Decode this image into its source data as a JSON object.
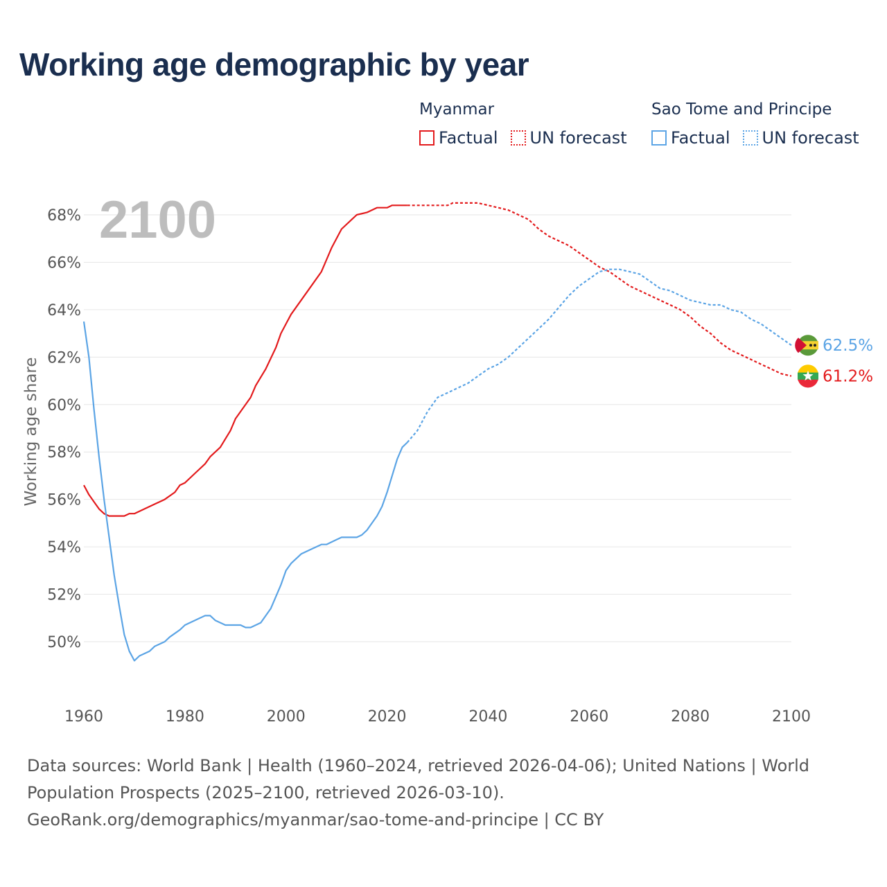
{
  "title": "Working age demographic by year",
  "legend": {
    "groups": [
      {
        "country": "Myanmar",
        "color": "#e31a1c",
        "factual_label": "Factual",
        "forecast_label": "UN forecast"
      },
      {
        "country": "Sao Tome and Principe",
        "color": "#5ba4e5",
        "factual_label": "Factual",
        "forecast_label": "UN forecast"
      }
    ]
  },
  "year_label": "2100",
  "footer": {
    "line1": "Data sources: World Bank | Health (1960–2024, retrieved 2026-04-06); United Nations | World",
    "line2": "Population Prospects (2025–2100, retrieved 2026-03-10).",
    "line3": "GeoRank.org/demographics/myanmar/sao-tome-and-principe | CC BY"
  },
  "chart_data": {
    "type": "line",
    "title": "Working age demographic by year",
    "xlabel": "",
    "ylabel": "Working age share",
    "xlim": [
      1960,
      2100
    ],
    "ylim": [
      48,
      69
    ],
    "x_ticks": [
      1960,
      1980,
      2000,
      2020,
      2040,
      2060,
      2080,
      2100
    ],
    "x_tick_labels": [
      "1960",
      "1980",
      "2000",
      "2020",
      "2040",
      "2060",
      "2080",
      "2100"
    ],
    "y_ticks": [
      50,
      52,
      54,
      56,
      58,
      60,
      62,
      64,
      66,
      68
    ],
    "y_tick_labels": [
      "50%",
      "52%",
      "54%",
      "56%",
      "58%",
      "60%",
      "62%",
      "64%",
      "66%",
      "68%"
    ],
    "grid": true,
    "series": [
      {
        "name": "Myanmar",
        "color": "#e31a1c",
        "end_label": "61.2%",
        "factual": [
          [
            1960,
            56.6
          ],
          [
            1961,
            56.2
          ],
          [
            1962,
            55.9
          ],
          [
            1963,
            55.6
          ],
          [
            1964,
            55.4
          ],
          [
            1965,
            55.3
          ],
          [
            1966,
            55.3
          ],
          [
            1967,
            55.3
          ],
          [
            1968,
            55.3
          ],
          [
            1969,
            55.4
          ],
          [
            1970,
            55.4
          ],
          [
            1972,
            55.6
          ],
          [
            1974,
            55.8
          ],
          [
            1976,
            56.0
          ],
          [
            1978,
            56.3
          ],
          [
            1979,
            56.6
          ],
          [
            1980,
            56.7
          ],
          [
            1982,
            57.1
          ],
          [
            1984,
            57.5
          ],
          [
            1985,
            57.8
          ],
          [
            1987,
            58.2
          ],
          [
            1989,
            58.9
          ],
          [
            1990,
            59.4
          ],
          [
            1991,
            59.7
          ],
          [
            1993,
            60.3
          ],
          [
            1994,
            60.8
          ],
          [
            1996,
            61.5
          ],
          [
            1998,
            62.4
          ],
          [
            1999,
            63.0
          ],
          [
            2000,
            63.4
          ],
          [
            2001,
            63.8
          ],
          [
            2003,
            64.4
          ],
          [
            2005,
            65.0
          ],
          [
            2007,
            65.6
          ],
          [
            2008,
            66.1
          ],
          [
            2009,
            66.6
          ],
          [
            2010,
            67.0
          ],
          [
            2011,
            67.4
          ],
          [
            2013,
            67.8
          ],
          [
            2014,
            68.0
          ],
          [
            2016,
            68.1
          ],
          [
            2018,
            68.3
          ],
          [
            2020,
            68.3
          ],
          [
            2021,
            68.4
          ],
          [
            2022,
            68.4
          ],
          [
            2024,
            68.4
          ]
        ],
        "forecast": [
          [
            2024,
            68.4
          ],
          [
            2026,
            68.4
          ],
          [
            2028,
            68.4
          ],
          [
            2030,
            68.4
          ],
          [
            2032,
            68.4
          ],
          [
            2033,
            68.5
          ],
          [
            2036,
            68.5
          ],
          [
            2038,
            68.5
          ],
          [
            2040,
            68.4
          ],
          [
            2042,
            68.3
          ],
          [
            2044,
            68.2
          ],
          [
            2046,
            68.0
          ],
          [
            2048,
            67.8
          ],
          [
            2050,
            67.4
          ],
          [
            2052,
            67.1
          ],
          [
            2054,
            66.9
          ],
          [
            2056,
            66.7
          ],
          [
            2058,
            66.4
          ],
          [
            2060,
            66.1
          ],
          [
            2062,
            65.8
          ],
          [
            2064,
            65.6
          ],
          [
            2066,
            65.3
          ],
          [
            2068,
            65.0
          ],
          [
            2070,
            64.8
          ],
          [
            2072,
            64.6
          ],
          [
            2074,
            64.4
          ],
          [
            2076,
            64.2
          ],
          [
            2078,
            64.0
          ],
          [
            2080,
            63.7
          ],
          [
            2082,
            63.3
          ],
          [
            2084,
            63.0
          ],
          [
            2086,
            62.6
          ],
          [
            2088,
            62.3
          ],
          [
            2090,
            62.1
          ],
          [
            2092,
            61.9
          ],
          [
            2094,
            61.7
          ],
          [
            2096,
            61.5
          ],
          [
            2098,
            61.3
          ],
          [
            2100,
            61.2
          ]
        ]
      },
      {
        "name": "Sao Tome and Principe",
        "color": "#5ba4e5",
        "end_label": "62.5%",
        "factual": [
          [
            1960,
            63.5
          ],
          [
            1961,
            62.0
          ],
          [
            1962,
            59.8
          ],
          [
            1963,
            57.8
          ],
          [
            1964,
            56.0
          ],
          [
            1965,
            54.4
          ],
          [
            1966,
            52.8
          ],
          [
            1967,
            51.5
          ],
          [
            1968,
            50.3
          ],
          [
            1969,
            49.6
          ],
          [
            1970,
            49.2
          ],
          [
            1971,
            49.4
          ],
          [
            1973,
            49.6
          ],
          [
            1974,
            49.8
          ],
          [
            1976,
            50.0
          ],
          [
            1977,
            50.2
          ],
          [
            1979,
            50.5
          ],
          [
            1980,
            50.7
          ],
          [
            1981,
            50.8
          ],
          [
            1983,
            51.0
          ],
          [
            1984,
            51.1
          ],
          [
            1985,
            51.1
          ],
          [
            1986,
            50.9
          ],
          [
            1987,
            50.8
          ],
          [
            1988,
            50.7
          ],
          [
            1990,
            50.7
          ],
          [
            1991,
            50.7
          ],
          [
            1992,
            50.6
          ],
          [
            1993,
            50.6
          ],
          [
            1995,
            50.8
          ],
          [
            1997,
            51.4
          ],
          [
            1999,
            52.4
          ],
          [
            2000,
            53.0
          ],
          [
            2001,
            53.3
          ],
          [
            2003,
            53.7
          ],
          [
            2005,
            53.9
          ],
          [
            2007,
            54.1
          ],
          [
            2008,
            54.1
          ],
          [
            2010,
            54.3
          ],
          [
            2011,
            54.4
          ],
          [
            2013,
            54.4
          ],
          [
            2014,
            54.4
          ],
          [
            2015,
            54.5
          ],
          [
            2016,
            54.7
          ],
          [
            2018,
            55.3
          ],
          [
            2019,
            55.7
          ],
          [
            2020,
            56.3
          ],
          [
            2021,
            57.0
          ],
          [
            2022,
            57.7
          ],
          [
            2023,
            58.2
          ],
          [
            2024,
            58.4
          ]
        ],
        "forecast": [
          [
            2024,
            58.4
          ],
          [
            2026,
            58.9
          ],
          [
            2028,
            59.7
          ],
          [
            2030,
            60.3
          ],
          [
            2032,
            60.5
          ],
          [
            2034,
            60.7
          ],
          [
            2036,
            60.9
          ],
          [
            2038,
            61.2
          ],
          [
            2040,
            61.5
          ],
          [
            2042,
            61.7
          ],
          [
            2044,
            62.0
          ],
          [
            2046,
            62.4
          ],
          [
            2048,
            62.8
          ],
          [
            2050,
            63.2
          ],
          [
            2052,
            63.6
          ],
          [
            2054,
            64.1
          ],
          [
            2056,
            64.6
          ],
          [
            2058,
            65.0
          ],
          [
            2060,
            65.3
          ],
          [
            2062,
            65.6
          ],
          [
            2064,
            65.7
          ],
          [
            2066,
            65.7
          ],
          [
            2068,
            65.6
          ],
          [
            2070,
            65.5
          ],
          [
            2072,
            65.2
          ],
          [
            2074,
            64.9
          ],
          [
            2076,
            64.8
          ],
          [
            2078,
            64.6
          ],
          [
            2080,
            64.4
          ],
          [
            2082,
            64.3
          ],
          [
            2084,
            64.2
          ],
          [
            2086,
            64.2
          ],
          [
            2088,
            64.0
          ],
          [
            2090,
            63.9
          ],
          [
            2092,
            63.6
          ],
          [
            2094,
            63.4
          ],
          [
            2096,
            63.1
          ],
          [
            2098,
            62.8
          ],
          [
            2100,
            62.5
          ]
        ]
      }
    ]
  }
}
